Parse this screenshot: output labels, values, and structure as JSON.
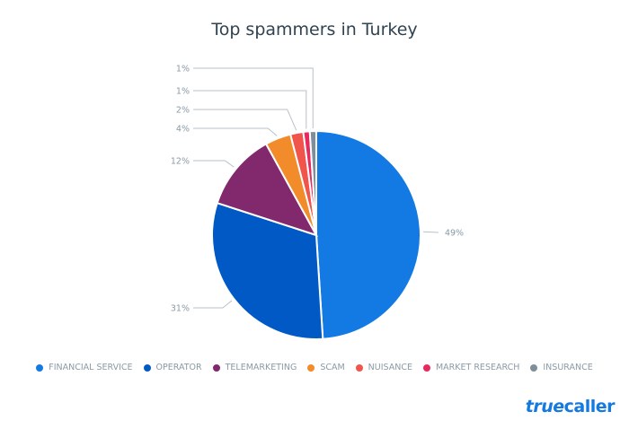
{
  "chart_data": {
    "type": "pie",
    "title": "Top spammers in Turkey",
    "categories": [
      "FINANCIAL SERVICE",
      "OPERATOR",
      "TELEMARKETING",
      "SCAM",
      "NUISANCE",
      "MARKET RESEARCH",
      "INSURANCE"
    ],
    "values": [
      49,
      31,
      12,
      4,
      2,
      1,
      1
    ],
    "data_labels": [
      "49%",
      "31%",
      "12%",
      "4%",
      "2%",
      "1%",
      "1%"
    ],
    "colors": [
      "#137ae3",
      "#0059c4",
      "#82296e",
      "#f28b2a",
      "#f0544a",
      "#e8295e",
      "#7c8f9a"
    ],
    "legend": "bottom"
  },
  "brand": {
    "logo_text": "truecaller"
  }
}
